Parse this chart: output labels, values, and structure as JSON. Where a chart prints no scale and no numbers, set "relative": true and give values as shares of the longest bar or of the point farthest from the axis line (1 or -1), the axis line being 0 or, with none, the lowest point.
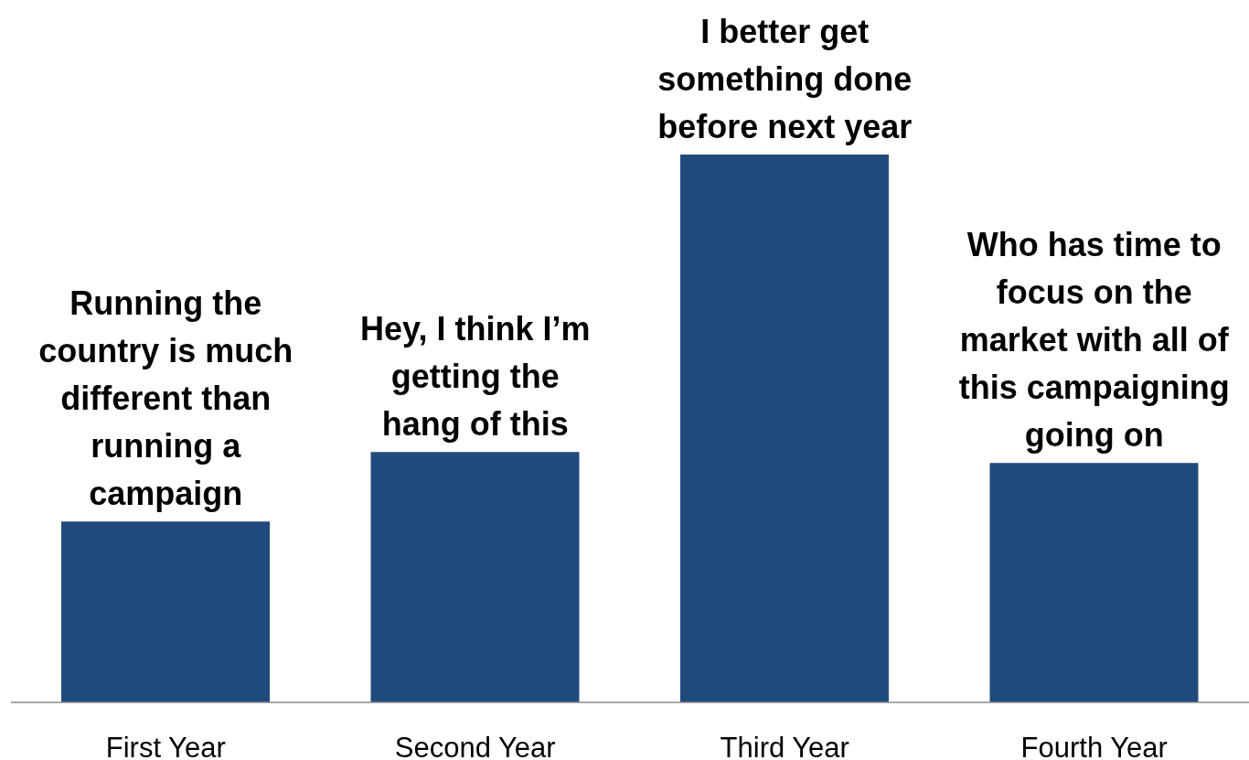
{
  "chart_data": {
    "type": "bar",
    "relative": true,
    "categories": [
      "First Year",
      "Second Year",
      "Third Year",
      "Fourth Year"
    ],
    "values": [
      0.33,
      0.457,
      1,
      0.437
    ],
    "color": "#214a7c",
    "annotations": [
      {
        "text": "Running the\ncountry is much\ndifferent than\nrunning a\ncampaign",
        "x": "First Year",
        "y": 0.33
      },
      {
        "text": "Hey, I think I’m\ngetting the\nhang of this",
        "x": "Second Year",
        "y": 0.457
      },
      {
        "text": "I better get\nsomething done\nbefore next year",
        "x": "Third Year",
        "y": 1
      },
      {
        "text": "Who has time to\nfocus on the\nmarket with all of\nthis campaigning\ngoing on",
        "x": "Fourth Year",
        "y": 0.437
      }
    ]
  }
}
